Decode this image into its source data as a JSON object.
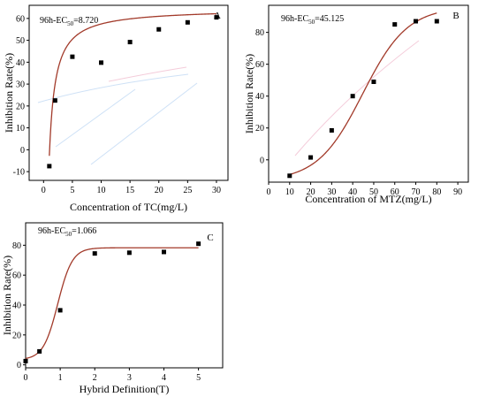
{
  "chart_data": [
    {
      "type": "scatter",
      "panel": "A",
      "annotation": {
        "prefix": "96h-EC",
        "sub": "50",
        "suffix": "=8.720"
      },
      "xlabel": "Concentration of TC(mg/L)",
      "ylabel": "Inhibition Rate(%)",
      "xlim": [
        -2.5,
        32
      ],
      "ylim": [
        -14,
        66
      ],
      "xticks": [
        0,
        5,
        10,
        15,
        20,
        25,
        30
      ],
      "yticks": [
        -10,
        0,
        10,
        20,
        30,
        40,
        50,
        60
      ],
      "points": [
        {
          "x": 1,
          "y": -7.5
        },
        {
          "x": 2,
          "y": 22.5
        },
        {
          "x": 5,
          "y": 42.5
        },
        {
          "x": 10,
          "y": 39.8
        },
        {
          "x": 15,
          "y": 49.2
        },
        {
          "x": 20,
          "y": 55
        },
        {
          "x": 25,
          "y": 58.2
        },
        {
          "x": 30,
          "y": 60.5
        }
      ],
      "fit": "hyperbolic"
    },
    {
      "type": "scatter",
      "panel": "B",
      "annotation": {
        "prefix": "96h-EC",
        "sub": "50",
        "suffix": "=45.125"
      },
      "xlabel": "Concentration of MTZ(mg/L)",
      "ylabel": "Inhibition Rate(%)",
      "xlim": [
        0,
        95
      ],
      "ylim": [
        -14,
        97
      ],
      "xticks": [
        0,
        10,
        20,
        30,
        40,
        50,
        60,
        70,
        80,
        90
      ],
      "yticks": [
        0,
        20,
        40,
        60,
        80
      ],
      "points": [
        {
          "x": 10,
          "y": -10
        },
        {
          "x": 20,
          "y": 1.5
        },
        {
          "x": 30,
          "y": 18.5
        },
        {
          "x": 40,
          "y": 40
        },
        {
          "x": 50,
          "y": 49
        },
        {
          "x": 60,
          "y": 85
        },
        {
          "x": 70,
          "y": 87
        },
        {
          "x": 80,
          "y": 87
        }
      ],
      "fit": "sigmoid"
    },
    {
      "type": "scatter",
      "panel": "C",
      "annotation": {
        "prefix": "96h-EC",
        "sub": "50",
        "suffix": "=1.066"
      },
      "xlabel": "Hybrid Definition(T)",
      "ylabel": "Inhibition Rate(%)",
      "xlim": [
        0,
        5.7
      ],
      "ylim": [
        -2,
        95
      ],
      "xticks": [
        0,
        1,
        2,
        3,
        4,
        5
      ],
      "yticks": [
        0,
        20,
        40,
        60,
        80
      ],
      "points": [
        {
          "x": 0,
          "y": 2.5
        },
        {
          "x": 0.4,
          "y": 9
        },
        {
          "x": 1,
          "y": 36.5
        },
        {
          "x": 2,
          "y": 74.5
        },
        {
          "x": 3,
          "y": 75
        },
        {
          "x": 4,
          "y": 75.5
        },
        {
          "x": 5,
          "y": 81
        }
      ],
      "fit": "sigmoid"
    }
  ]
}
